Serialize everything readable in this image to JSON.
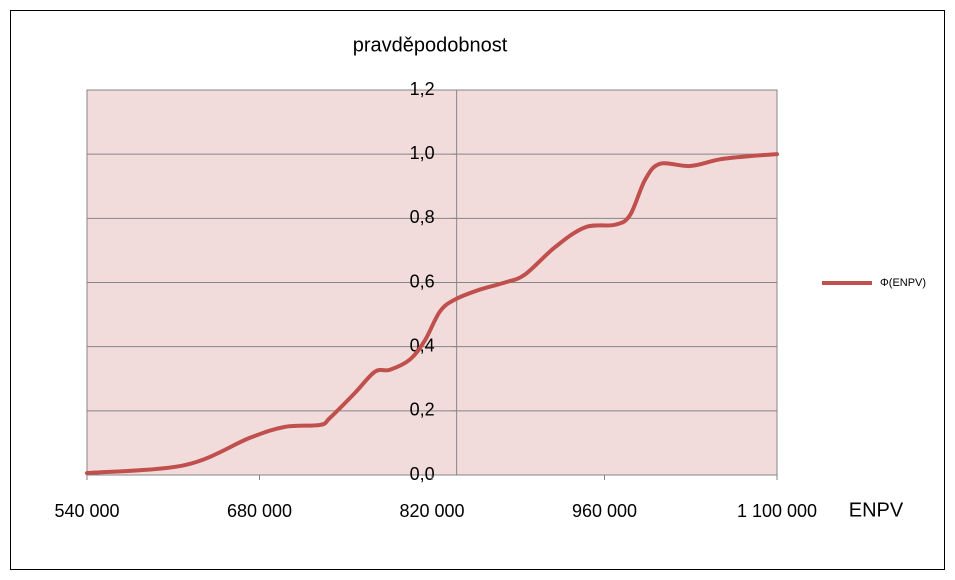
{
  "chart_data": {
    "type": "line",
    "title": "pravděpodobnost",
    "x_label": "ENPV",
    "x": [
      540000,
      619500,
      672300,
      700700,
      729100,
      737200,
      757500,
      773700,
      785900,
      802100,
      814300,
      826500,
      838700,
      858900,
      879200,
      895500,
      919800,
      944200,
      968500,
      980700,
      992900,
      1005000,
      1029400,
      1053700,
      1078100,
      1100000
    ],
    "series": [
      {
        "name": "Φ(ENPV)",
        "color": "#c0504d",
        "values": [
          0.006,
          0.031,
          0.116,
          0.15,
          0.156,
          0.178,
          0.256,
          0.322,
          0.328,
          0.36,
          0.42,
          0.51,
          0.547,
          0.578,
          0.6,
          0.625,
          0.71,
          0.772,
          0.78,
          0.81,
          0.92,
          0.97,
          0.963,
          0.984,
          0.994,
          1.0
        ]
      }
    ],
    "xlim": [
      540000,
      1100000
    ],
    "xticks": [
      {
        "value": 540000,
        "label": "540 000"
      },
      {
        "value": 680000,
        "label": "680 000"
      },
      {
        "value": 820000,
        "label": "820 000"
      },
      {
        "value": 960000,
        "label": "960 000"
      },
      {
        "value": 1100000,
        "label": "1 100 000"
      }
    ],
    "ylim": [
      0,
      1.2
    ],
    "yticks": [
      {
        "value": 0,
        "label": "0,0"
      },
      {
        "value": 0.2,
        "label": "0,2"
      },
      {
        "value": 0.4,
        "label": "0,4"
      },
      {
        "value": 0.6,
        "label": "0,6"
      },
      {
        "value": 0.8,
        "label": "0,8"
      },
      {
        "value": 1.0,
        "label": "1,0"
      },
      {
        "value": 1.2,
        "label": "1,2"
      }
    ],
    "y_axis_crosses_x": 840000,
    "grid": true,
    "legend": "right",
    "plot_background": "#f2dcdb"
  }
}
